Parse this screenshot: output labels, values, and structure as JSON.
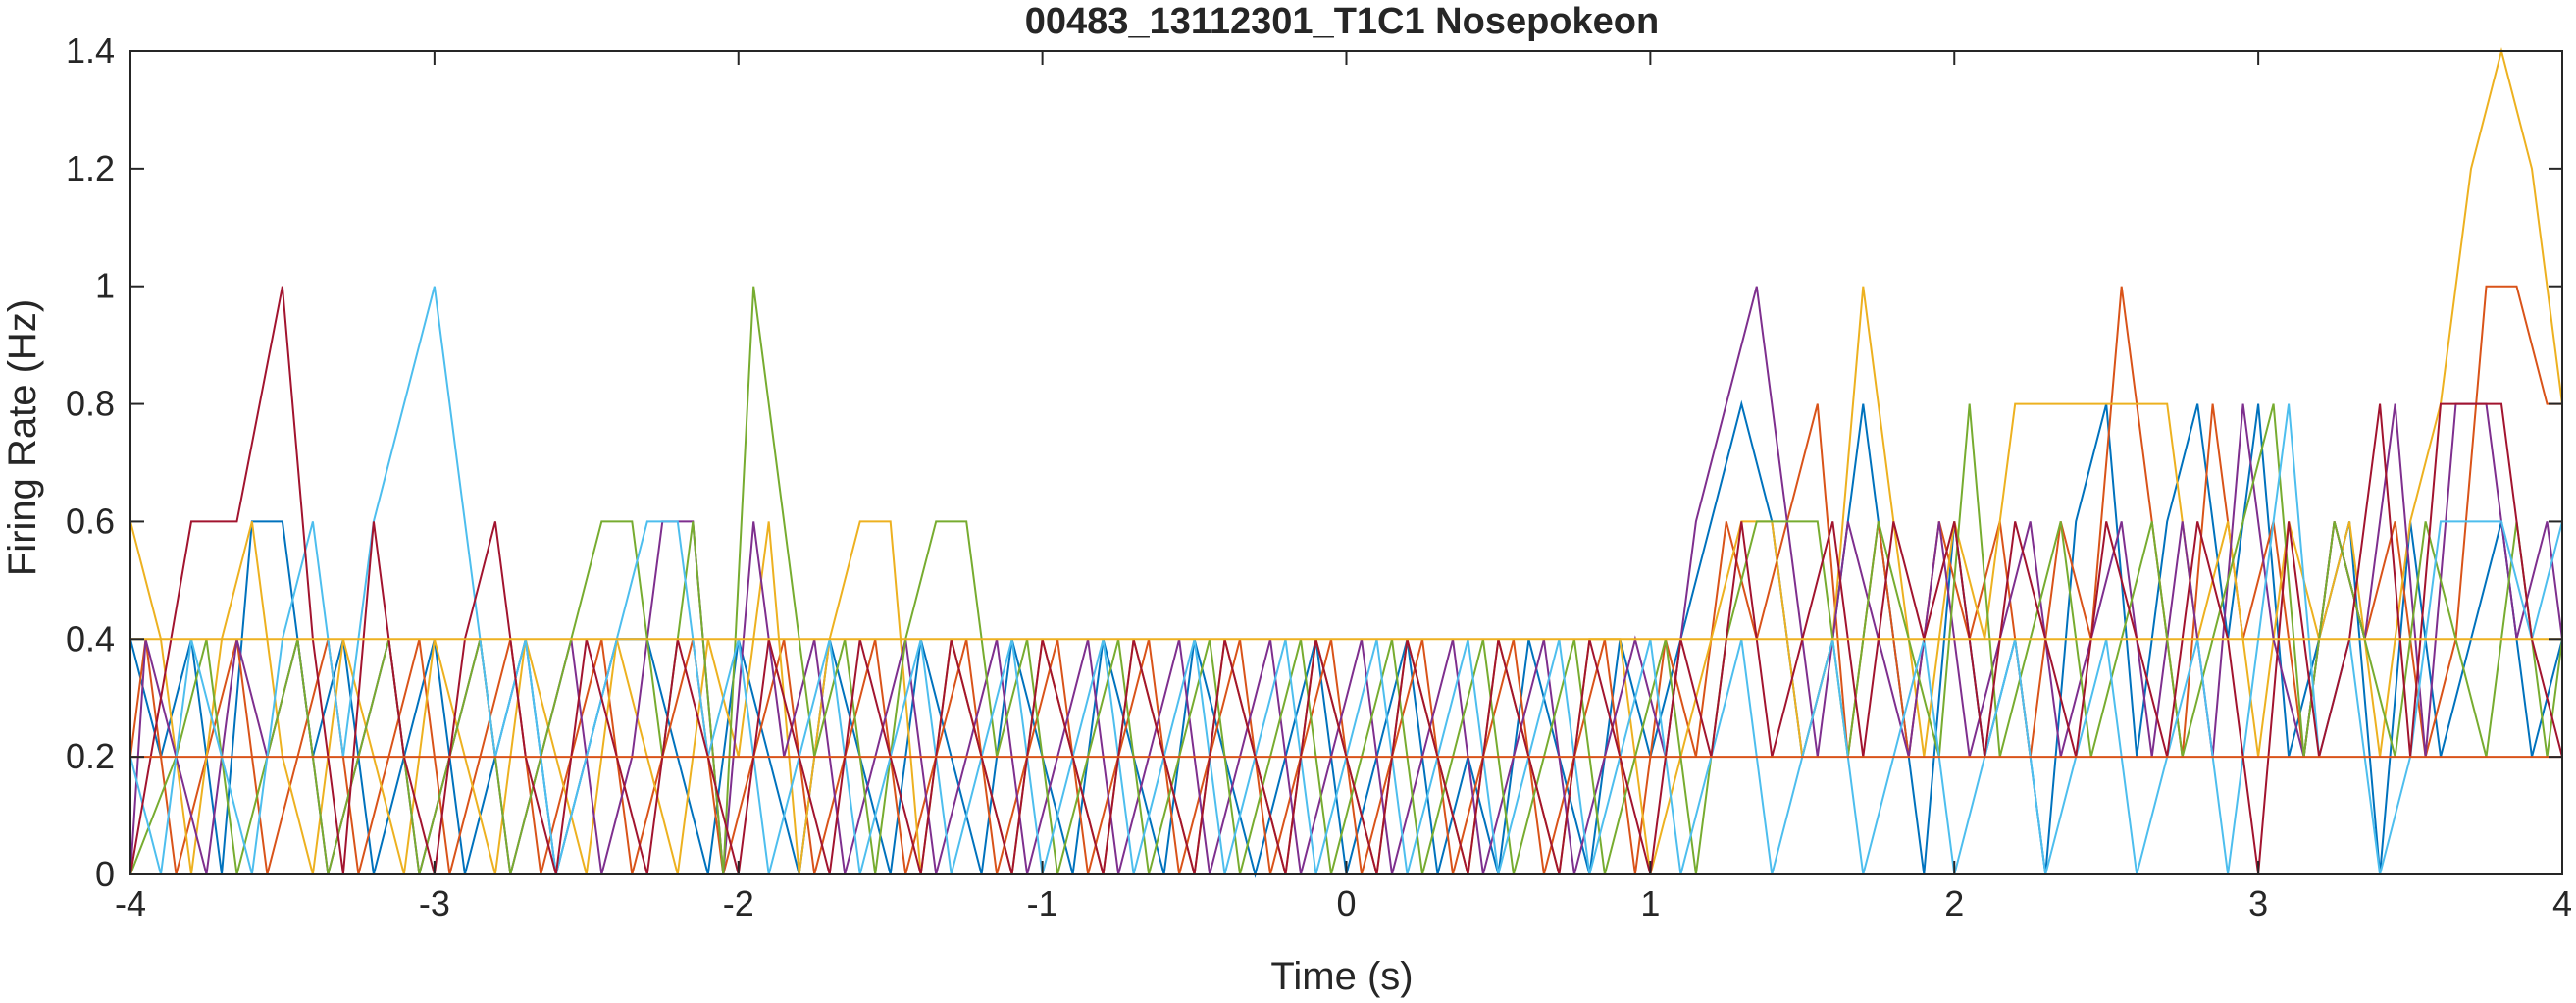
{
  "chart_data": {
    "type": "line",
    "title": "00483_13112301_T1C1 Nosepokeon",
    "xlabel": "Time (s)",
    "ylabel": "Firing Rate (Hz)",
    "xlim": [
      -4,
      4
    ],
    "ylim": [
      0,
      1.4
    ],
    "xticks": [
      -4,
      -3,
      -2,
      -1,
      0,
      1,
      2,
      3,
      4
    ],
    "xtick_labels": [
      "-4",
      "-3",
      "-2",
      "-1",
      "0",
      "1",
      "2",
      "3",
      "4"
    ],
    "yticks": [
      0,
      0.2,
      0.4,
      0.6,
      0.8,
      1,
      1.2,
      1.4
    ],
    "ytick_labels": [
      "0",
      "0.2",
      "0.4",
      "0.6",
      "0.8",
      "1",
      "1.2",
      "1.4"
    ],
    "grid": false,
    "legend": "none",
    "colors": [
      "#0072BD",
      "#D95319",
      "#EDB120",
      "#7E2F8E",
      "#77AC30",
      "#4DBEEE",
      "#A2142F"
    ],
    "series": [
      {
        "x": [
          -4,
          -3.9,
          -3.8,
          -3.7,
          -3.6,
          -3.5,
          -3.4,
          -3.3,
          -3.2,
          -3.1,
          -3.0,
          -2.9,
          -2.8,
          -2.7,
          -2.6,
          -2.5,
          -2.4,
          -2.3,
          -2.2,
          -2.1,
          -2.0,
          -1.9,
          -1.8,
          -1.7,
          -1.6,
          -1.5,
          -1.4,
          -1.3,
          -1.2,
          -1.1,
          -1.0,
          -0.9,
          -0.8,
          -0.7,
          -0.6,
          -0.5,
          -0.4,
          -0.3,
          -0.2,
          -0.1,
          0.0,
          0.1,
          0.2,
          0.3,
          0.4,
          0.5,
          0.6,
          0.7,
          0.8,
          0.9,
          1.0,
          1.1,
          1.2,
          1.3,
          1.4,
          1.5,
          1.6,
          1.7,
          1.8,
          1.9,
          2.0,
          2.1,
          2.2,
          2.3,
          2.4,
          2.5,
          2.6,
          2.7,
          2.8,
          2.9,
          3.0,
          3.1,
          3.2,
          3.3,
          3.4,
          3.5,
          3.6,
          3.7,
          3.8,
          3.9,
          4.0
        ],
        "y": [
          0.4,
          0.2,
          0.4,
          0,
          0.6,
          0.6,
          0.2,
          0.4,
          0,
          0.2,
          0.4,
          0,
          0.2,
          0.4,
          0,
          0.2,
          0.4,
          0.4,
          0.2,
          0,
          0.4,
          0.2,
          0,
          0.4,
          0.2,
          0,
          0.4,
          0.2,
          0,
          0.4,
          0.2,
          0,
          0.4,
          0.2,
          0,
          0.4,
          0.2,
          0,
          0.2,
          0.4,
          0,
          0.2,
          0.4,
          0,
          0.2,
          0,
          0.4,
          0.2,
          0,
          0.4,
          0.2,
          0.4,
          0.6,
          0.8,
          0.6,
          0.2,
          0.4,
          0.8,
          0.4,
          0,
          0.6,
          0.2,
          0.4,
          0,
          0.6,
          0.8,
          0.2,
          0.6,
          0.8,
          0.4,
          0.8,
          0.2,
          0.4,
          0.6,
          0,
          0.6,
          0.2,
          0.4,
          0.6,
          0.2,
          0.4
        ]
      },
      {
        "x": [
          -4,
          -3.95,
          -3.85,
          -3.75,
          -3.65,
          -3.55,
          -3.45,
          -3.35,
          -3.25,
          -3.15,
          -3.05,
          -2.95,
          -2.85,
          -2.75,
          -2.65,
          -2.55,
          -2.45,
          -2.35,
          -2.25,
          -2.15,
          -2.05,
          -1.95,
          -1.85,
          -1.75,
          -1.65,
          -1.55,
          -1.45,
          -1.35,
          -1.25,
          -1.15,
          -1.05,
          -0.95,
          -0.85,
          -0.75,
          -0.65,
          -0.55,
          -0.45,
          -0.35,
          -0.25,
          -0.15,
          -0.05,
          0.05,
          0.15,
          0.25,
          0.35,
          0.45,
          0.55,
          0.65,
          0.75,
          0.85,
          0.95,
          1.05,
          1.15,
          1.25,
          1.35,
          1.45,
          1.55,
          1.65,
          1.75,
          1.85,
          1.95,
          2.05,
          2.15,
          2.25,
          2.35,
          2.45,
          2.55,
          2.65,
          2.75,
          2.85,
          2.95,
          3.05,
          3.15,
          3.25,
          3.35,
          3.45,
          3.55,
          3.65,
          3.75,
          3.85,
          3.95,
          4.0
        ],
        "y": [
          0.2,
          0.4,
          0,
          0.2,
          0.4,
          0,
          0.2,
          0.4,
          0,
          0.2,
          0.4,
          0,
          0.2,
          0.4,
          0,
          0.2,
          0.4,
          0,
          0.2,
          0.4,
          0,
          0.2,
          0.4,
          0,
          0.2,
          0.4,
          0,
          0.2,
          0.4,
          0,
          0.2,
          0.4,
          0,
          0.2,
          0.4,
          0,
          0.2,
          0.4,
          0,
          0.2,
          0.4,
          0,
          0.2,
          0.4,
          0,
          0.2,
          0.4,
          0,
          0.2,
          0.4,
          0,
          0.4,
          0.2,
          0.6,
          0.4,
          0.6,
          0.8,
          0.2,
          0.6,
          0.2,
          0.6,
          0.4,
          0.6,
          0.2,
          0.6,
          0.4,
          1.0,
          0.6,
          0.2,
          0.8,
          0.4,
          0.6,
          0.2,
          0.6,
          0.4,
          0.6,
          0.2,
          0.4,
          1.0,
          1.0,
          0.8,
          0.8
        ]
      },
      {
        "x": [
          -4,
          -3.9,
          -3.8,
          -3.7,
          -3.6,
          -3.5,
          -3.4,
          -3.3,
          -3.2,
          -3.1,
          -3.0,
          -2.9,
          -2.8,
          -2.7,
          -2.6,
          -2.5,
          -2.4,
          -2.3,
          -2.2,
          -2.1,
          -2.0,
          -1.9,
          -1.8,
          -1.7,
          -1.6,
          -1.5,
          -1.4,
          -1.3,
          -1.2,
          -1.1,
          -1.0,
          -0.9,
          -0.8,
          -0.7,
          -0.6,
          -0.5,
          -0.4,
          -0.3,
          -0.2,
          -0.1,
          0.0,
          0.1,
          0.2,
          0.3,
          0.4,
          0.5,
          0.6,
          0.7,
          0.8,
          0.9,
          1.0,
          1.1,
          1.2,
          1.3,
          1.4,
          1.5,
          1.6,
          1.7,
          1.8,
          1.9,
          2.0,
          2.1,
          2.2,
          2.3,
          2.4,
          2.5,
          2.6,
          2.7,
          2.8,
          2.9,
          3.0,
          3.1,
          3.2,
          3.3,
          3.4,
          3.5,
          3.6,
          3.7,
          3.8,
          3.9,
          4.0
        ],
        "y": [
          0.6,
          0.4,
          0,
          0.4,
          0.6,
          0.2,
          0,
          0.4,
          0.2,
          0,
          0.4,
          0.2,
          0,
          0.4,
          0.2,
          0,
          0.4,
          0.2,
          0,
          0.4,
          0.2,
          0.6,
          0,
          0.4,
          0.6,
          0.6,
          0,
          0.4,
          0.2,
          0,
          0.4,
          0.2,
          0,
          0.4,
          0.2,
          0,
          0.4,
          0.2,
          0,
          0.4,
          0.2,
          0,
          0.4,
          0.2,
          0,
          0.4,
          0.2,
          0,
          0.4,
          0.4,
          0,
          0.2,
          0.4,
          0.6,
          0.6,
          0.2,
          0.4,
          1.0,
          0.6,
          0.2,
          0.6,
          0.4,
          0.8,
          0.8,
          0.8,
          0.8,
          0.8,
          0.8,
          0.4,
          0.6,
          0.2,
          0.6,
          0.4,
          0.6,
          0.2,
          0.6,
          0.8,
          1.2,
          1.4,
          1.2,
          0.8
        ]
      },
      {
        "x": [
          -4,
          -3.95,
          -3.85,
          -3.75,
          -3.65,
          -3.55,
          -3.45,
          -3.35,
          -3.25,
          -3.15,
          -3.05,
          -2.95,
          -2.85,
          -2.75,
          -2.65,
          -2.55,
          -2.45,
          -2.35,
          -2.25,
          -2.15,
          -2.05,
          -1.95,
          -1.85,
          -1.75,
          -1.65,
          -1.55,
          -1.45,
          -1.35,
          -1.25,
          -1.15,
          -1.05,
          -0.95,
          -0.85,
          -0.75,
          -0.65,
          -0.55,
          -0.45,
          -0.35,
          -0.25,
          -0.15,
          -0.05,
          0.05,
          0.15,
          0.25,
          0.35,
          0.45,
          0.55,
          0.65,
          0.75,
          0.85,
          0.95,
          1.05,
          1.15,
          1.25,
          1.35,
          1.45,
          1.55,
          1.65,
          1.75,
          1.85,
          1.95,
          2.05,
          2.15,
          2.25,
          2.35,
          2.45,
          2.55,
          2.65,
          2.75,
          2.85,
          2.95,
          3.05,
          3.15,
          3.25,
          3.35,
          3.45,
          3.55,
          3.65,
          3.75,
          3.85,
          3.95,
          4.0
        ],
        "y": [
          0,
          0.4,
          0.2,
          0,
          0.4,
          0.2,
          0.4,
          0,
          0.2,
          0.4,
          0,
          0.2,
          0.4,
          0,
          0.2,
          0.4,
          0,
          0.2,
          0.6,
          0.6,
          0,
          0.6,
          0.2,
          0.4,
          0,
          0.2,
          0.4,
          0,
          0.2,
          0.4,
          0,
          0.2,
          0.4,
          0,
          0.2,
          0.4,
          0,
          0.2,
          0.4,
          0,
          0.2,
          0.4,
          0,
          0.2,
          0.4,
          0,
          0.2,
          0.4,
          0,
          0.2,
          0.4,
          0.2,
          0.6,
          0.8,
          1.0,
          0.6,
          0.2,
          0.6,
          0.4,
          0.2,
          0.6,
          0.2,
          0.4,
          0.6,
          0.2,
          0.4,
          0.6,
          0.2,
          0.6,
          0.2,
          0.8,
          0.4,
          0.2,
          0.6,
          0.4,
          0.8,
          0.2,
          0.8,
          0.8,
          0.4,
          0.6,
          0.4
        ]
      },
      {
        "x": [
          -4,
          -3.85,
          -3.75,
          -3.65,
          -3.55,
          -3.45,
          -3.35,
          -3.25,
          -3.15,
          -3.05,
          -2.95,
          -2.85,
          -2.75,
          -2.65,
          -2.55,
          -2.45,
          -2.35,
          -2.25,
          -2.15,
          -2.05,
          -1.95,
          -1.85,
          -1.75,
          -1.65,
          -1.55,
          -1.45,
          -1.35,
          -1.25,
          -1.15,
          -1.05,
          -0.95,
          -0.85,
          -0.75,
          -0.65,
          -0.55,
          -0.45,
          -0.35,
          -0.25,
          -0.15,
          -0.05,
          0.05,
          0.15,
          0.25,
          0.35,
          0.45,
          0.55,
          0.65,
          0.75,
          0.85,
          0.95,
          1.05,
          1.15,
          1.25,
          1.35,
          1.45,
          1.55,
          1.65,
          1.75,
          1.85,
          1.95,
          2.05,
          2.15,
          2.25,
          2.35,
          2.45,
          2.55,
          2.65,
          2.75,
          2.85,
          2.95,
          3.05,
          3.15,
          3.25,
          3.35,
          3.45,
          3.55,
          3.65,
          3.75,
          3.85,
          3.95,
          4.0
        ],
        "y": [
          0,
          0.2,
          0.4,
          0,
          0.2,
          0.4,
          0,
          0.2,
          0.4,
          0,
          0.2,
          0.4,
          0,
          0.2,
          0.4,
          0.6,
          0.6,
          0.2,
          0.6,
          0,
          1.0,
          0.6,
          0.2,
          0.4,
          0,
          0.4,
          0.6,
          0.6,
          0.2,
          0.4,
          0,
          0.2,
          0.4,
          0,
          0.2,
          0.4,
          0,
          0.2,
          0.4,
          0,
          0.2,
          0.4,
          0,
          0.2,
          0.4,
          0,
          0.2,
          0.4,
          0,
          0.2,
          0.4,
          0,
          0.4,
          0.6,
          0.6,
          0.6,
          0.2,
          0.6,
          0.4,
          0.2,
          0.8,
          0.2,
          0.4,
          0.6,
          0.2,
          0.4,
          0.6,
          0.2,
          0.4,
          0.6,
          0.8,
          0.2,
          0.6,
          0.4,
          0.2,
          0.6,
          0.4,
          0.2,
          0.6,
          0.2,
          0.4
        ]
      },
      {
        "x": [
          -4,
          -3.9,
          -3.8,
          -3.7,
          -3.6,
          -3.5,
          -3.4,
          -3.3,
          -3.2,
          -3.1,
          -3.0,
          -2.9,
          -2.8,
          -2.7,
          -2.6,
          -2.5,
          -2.4,
          -2.3,
          -2.2,
          -2.1,
          -2.0,
          -1.9,
          -1.8,
          -1.7,
          -1.6,
          -1.5,
          -1.4,
          -1.3,
          -1.2,
          -1.1,
          -1.0,
          -0.9,
          -0.8,
          -0.7,
          -0.6,
          -0.5,
          -0.4,
          -0.3,
          -0.2,
          -0.1,
          0.0,
          0.1,
          0.2,
          0.3,
          0.4,
          0.5,
          0.6,
          0.7,
          0.8,
          0.9,
          1.0,
          1.1,
          1.2,
          1.3,
          1.4,
          1.5,
          1.6,
          1.7,
          1.8,
          1.9,
          2.0,
          2.1,
          2.2,
          2.3,
          2.4,
          2.5,
          2.6,
          2.7,
          2.8,
          2.9,
          3.0,
          3.1,
          3.2,
          3.3,
          3.4,
          3.5,
          3.6,
          3.7,
          3.8,
          3.9,
          4.0
        ],
        "y": [
          0.2,
          0,
          0.4,
          0.2,
          0,
          0.4,
          0.6,
          0.2,
          0.6,
          0.8,
          1.0,
          0.6,
          0.2,
          0.4,
          0,
          0.2,
          0.4,
          0.6,
          0.6,
          0.2,
          0.4,
          0,
          0.2,
          0.4,
          0,
          0.2,
          0.4,
          0,
          0.2,
          0.4,
          0,
          0.2,
          0.4,
          0,
          0.2,
          0.4,
          0,
          0.2,
          0.4,
          0,
          0.2,
          0.4,
          0,
          0.2,
          0.4,
          0,
          0.2,
          0.4,
          0,
          0.2,
          0.4,
          0,
          0.2,
          0.4,
          0,
          0.2,
          0.4,
          0,
          0.2,
          0.4,
          0,
          0.2,
          0.4,
          0,
          0.2,
          0.4,
          0,
          0.2,
          0.4,
          0,
          0.4,
          0.8,
          0.2,
          0.4,
          0,
          0.2,
          0.6,
          0.6,
          0.6,
          0.4,
          0.6
        ]
      },
      {
        "x": [
          -4,
          -3.8,
          -3.75,
          -3.65,
          -3.5,
          -3.4,
          -3.3,
          -3.2,
          -3.1,
          -3.0,
          -2.9,
          -2.8,
          -2.7,
          -2.6,
          -2.5,
          -2.4,
          -2.3,
          -2.2,
          -2.1,
          -2.0,
          -1.9,
          -1.8,
          -1.7,
          -1.6,
          -1.5,
          -1.4,
          -1.3,
          -1.2,
          -1.1,
          -1.0,
          -0.9,
          -0.8,
          -0.7,
          -0.6,
          -0.5,
          -0.4,
          -0.3,
          -0.2,
          -0.1,
          0.0,
          0.1,
          0.2,
          0.3,
          0.4,
          0.5,
          0.6,
          0.7,
          0.8,
          0.9,
          1.0,
          1.1,
          1.2,
          1.3,
          1.4,
          1.5,
          1.6,
          1.7,
          1.8,
          1.9,
          2.0,
          2.1,
          2.2,
          2.3,
          2.4,
          2.5,
          2.6,
          2.7,
          2.8,
          2.9,
          3.0,
          3.1,
          3.2,
          3.3,
          3.4,
          3.5,
          3.6,
          3.7,
          3.8,
          3.9,
          4.0
        ],
        "y": [
          0,
          0.6,
          0.6,
          0.6,
          1.0,
          0.4,
          0,
          0.6,
          0.2,
          0,
          0.4,
          0.6,
          0.2,
          0,
          0.4,
          0.2,
          0,
          0.4,
          0.2,
          0,
          0.4,
          0.2,
          0,
          0.4,
          0.2,
          0,
          0.4,
          0.2,
          0,
          0.4,
          0.2,
          0,
          0.4,
          0.2,
          0,
          0.4,
          0.2,
          0,
          0.4,
          0.2,
          0,
          0.4,
          0.2,
          0,
          0.4,
          0.2,
          0,
          0.4,
          0.2,
          0,
          0.4,
          0.2,
          0.6,
          0.2,
          0.4,
          0.6,
          0.2,
          0.6,
          0.4,
          0.6,
          0.2,
          0.6,
          0.4,
          0.2,
          0.6,
          0.4,
          0.2,
          0.6,
          0.4,
          0,
          0.6,
          0.2,
          0.4,
          0.8,
          0.2,
          0.8,
          0.8,
          0.8,
          0.4,
          0.2
        ]
      },
      {
        "x": [
          -4,
          4
        ],
        "y": [
          0,
          0
        ]
      },
      {
        "x": [
          -4,
          4
        ],
        "y": [
          0.2,
          0.2
        ]
      },
      {
        "x": [
          -4,
          4
        ],
        "y": [
          0.4,
          0.4
        ]
      }
    ]
  }
}
